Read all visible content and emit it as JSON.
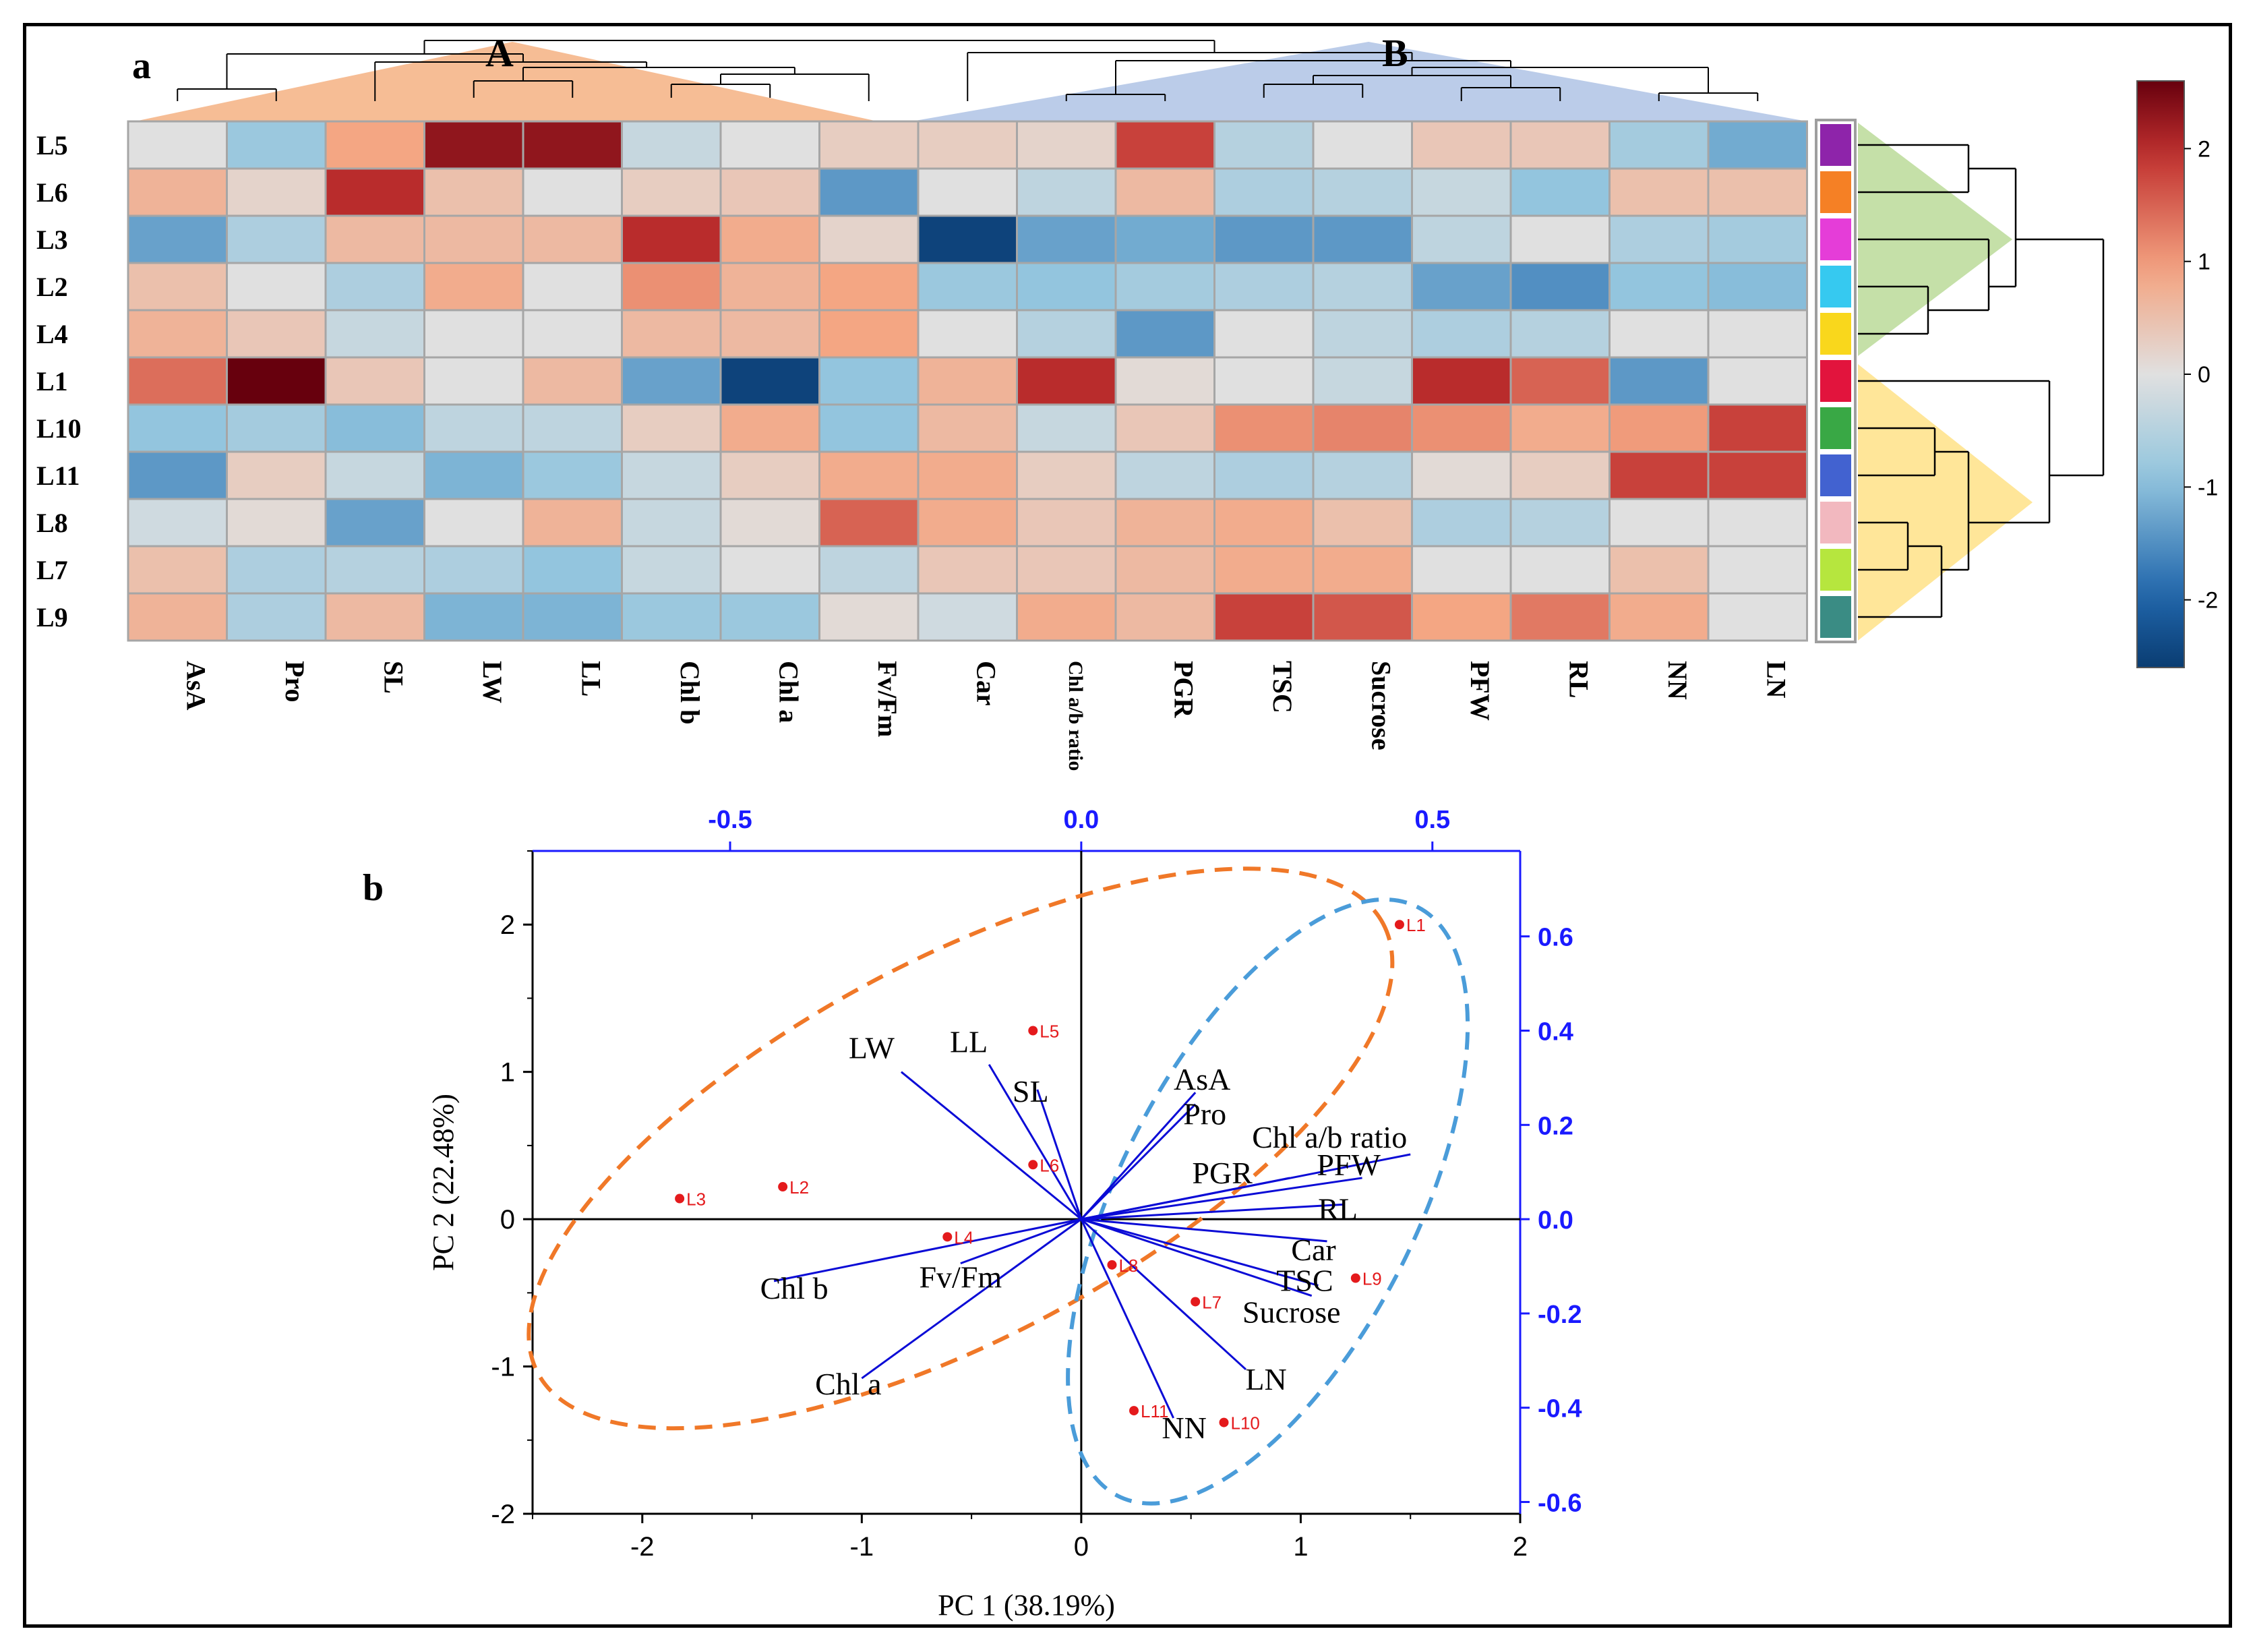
{
  "chart_data": [
    {
      "type": "heatmap",
      "panel_label": "a",
      "column_clusters": [
        "A",
        "B"
      ],
      "rows": [
        "L5",
        "L6",
        "L3",
        "L2",
        "L4",
        "L1",
        "L10",
        "L11",
        "L8",
        "L7",
        "L9"
      ],
      "columns": [
        "AsA",
        "Pro",
        "SL",
        "LW",
        "LL",
        "Chl b",
        "Chl a",
        "Fv/Fm",
        "Car",
        "Chl a/b ratio",
        "PGR",
        "TSC",
        "Sucrose",
        "PFW",
        "RL",
        "NN",
        "LN"
      ],
      "values": [
        [
          0.0,
          -0.8,
          0.9,
          2.3,
          2.3,
          -0.3,
          0.0,
          0.3,
          0.3,
          0.2,
          1.8,
          -0.5,
          0.0,
          0.4,
          0.4,
          -0.7,
          -1.2
        ],
        [
          0.7,
          0.2,
          2.0,
          0.5,
          0.0,
          0.3,
          0.4,
          -1.4,
          0.0,
          -0.4,
          0.6,
          -0.6,
          -0.5,
          -0.3,
          -0.9,
          0.5,
          0.5
        ],
        [
          -1.3,
          -0.6,
          0.6,
          0.6,
          0.6,
          2.0,
          0.8,
          0.2,
          -2.5,
          -1.3,
          -1.2,
          -1.4,
          -1.4,
          -0.4,
          0.0,
          -0.6,
          -0.7
        ],
        [
          0.5,
          0.0,
          -0.6,
          0.8,
          0.0,
          1.1,
          0.7,
          0.9,
          -0.8,
          -0.9,
          -0.7,
          -0.6,
          -0.5,
          -1.3,
          -1.5,
          -0.9,
          -1.0
        ],
        [
          0.7,
          0.4,
          -0.3,
          0.0,
          0.0,
          0.6,
          0.6,
          0.9,
          0.0,
          -0.5,
          -1.4,
          0.0,
          -0.4,
          -0.6,
          -0.5,
          0.0,
          0.0
        ],
        [
          1.4,
          2.6,
          0.4,
          0.0,
          0.6,
          -1.3,
          -2.5,
          -0.9,
          0.7,
          2.0,
          0.1,
          0.0,
          -0.3,
          2.0,
          1.5,
          -1.4,
          0.0
        ],
        [
          -0.9,
          -0.7,
          -1.0,
          -0.4,
          -0.4,
          0.3,
          0.8,
          -0.9,
          0.6,
          -0.3,
          0.4,
          1.1,
          1.2,
          1.1,
          0.8,
          1.0,
          1.8
        ],
        [
          -1.4,
          0.3,
          -0.3,
          -1.1,
          -0.8,
          -0.3,
          0.3,
          0.8,
          0.8,
          0.3,
          -0.4,
          -0.6,
          -0.5,
          0.1,
          0.3,
          1.8,
          1.8
        ],
        [
          -0.2,
          0.1,
          -1.3,
          0.0,
          0.7,
          -0.3,
          0.1,
          1.5,
          0.8,
          0.4,
          0.7,
          0.8,
          0.5,
          -0.6,
          -0.5,
          0.0,
          0.0
        ],
        [
          0.5,
          -0.6,
          -0.5,
          -0.6,
          -0.9,
          -0.3,
          0.0,
          -0.4,
          0.4,
          0.4,
          0.6,
          0.8,
          0.8,
          0.0,
          0.0,
          0.5,
          0.0
        ],
        [
          0.7,
          -0.6,
          0.6,
          -1.1,
          -1.1,
          -0.8,
          -0.8,
          0.1,
          -0.2,
          0.8,
          0.6,
          1.8,
          1.6,
          0.9,
          1.3,
          0.8,
          0.0
        ]
      ],
      "row_group_colors": [
        "#8e24aa",
        "#f58025",
        "#e53dd8",
        "#36c9f0",
        "#f9d71c",
        "#e2143d",
        "#39a845",
        "#4262d0",
        "#f2b8bf",
        "#b6e63e",
        "#3a8c84"
      ],
      "colorbar": {
        "ticks": [
          "2",
          "1",
          "0",
          "-1",
          "-2"
        ],
        "range": [
          -2.6,
          2.6
        ]
      },
      "palette": {
        "neg": "#0a3d72",
        "mid": "#e0e0e0",
        "pos": "#67000d"
      }
    },
    {
      "type": "scatter",
      "panel_label": "b",
      "xlabel": "PC 1 (38.19%)",
      "ylabel": "PC 2 (22.48%)",
      "xlim": [
        -2.5,
        2
      ],
      "ylim": [
        -2,
        2.5
      ],
      "x_ticks": [
        "-2",
        "-1",
        "0",
        "1",
        "2"
      ],
      "y_ticks": [
        "-2",
        "-1",
        "0",
        "1",
        "2"
      ],
      "top_axis_ticks": [
        "-0.5",
        "0.0",
        "0.5"
      ],
      "right_axis_ticks": [
        "0.6",
        "0.4",
        "0.2",
        "0.0",
        "-0.2",
        "-0.4",
        "-0.6"
      ],
      "points": [
        {
          "label": "L1",
          "x": 1.45,
          "y": 2.0
        },
        {
          "label": "L5",
          "x": -0.22,
          "y": 1.28
        },
        {
          "label": "L6",
          "x": -0.22,
          "y": 0.37
        },
        {
          "label": "L3",
          "x": -1.83,
          "y": 0.14
        },
        {
          "label": "L2",
          "x": -1.36,
          "y": 0.22
        },
        {
          "label": "L4",
          "x": -0.61,
          "y": -0.12
        },
        {
          "label": "L8",
          "x": 0.14,
          "y": -0.31
        },
        {
          "label": "L9",
          "x": 1.25,
          "y": -0.4
        },
        {
          "label": "L7",
          "x": 0.52,
          "y": -0.56
        },
        {
          "label": "L11",
          "x": 0.24,
          "y": -1.3
        },
        {
          "label": "L10",
          "x": 0.65,
          "y": -1.38
        }
      ],
      "loadings": [
        {
          "label": "LW",
          "x": -0.82,
          "y": 1.0
        },
        {
          "label": "LL",
          "x": -0.42,
          "y": 1.05
        },
        {
          "label": "SL",
          "x": -0.2,
          "y": 0.88
        },
        {
          "label": "AsA",
          "x": 0.52,
          "y": 0.86
        },
        {
          "label": "Pro",
          "x": 0.52,
          "y": 0.78
        },
        {
          "label": "Chl a/b ratio",
          "x": 1.5,
          "y": 0.44
        },
        {
          "label": "PGR",
          "x": 0.95,
          "y": 0.28
        },
        {
          "label": "PFW",
          "x": 1.28,
          "y": 0.28
        },
        {
          "label": "RL",
          "x": 1.2,
          "y": 0.1
        },
        {
          "label": "Car",
          "x": 1.12,
          "y": -0.15
        },
        {
          "label": "TSC",
          "x": 1.08,
          "y": -0.45
        },
        {
          "label": "Sucrose",
          "x": 1.05,
          "y": -0.52
        },
        {
          "label": "Chl b",
          "x": -1.4,
          "y": -0.42
        },
        {
          "label": "Fv/Fm",
          "x": -0.55,
          "y": -0.3
        },
        {
          "label": "Chl a",
          "x": -1.0,
          "y": -1.08
        },
        {
          "label": "LN",
          "x": 0.75,
          "y": -1.02
        },
        {
          "label": "NN",
          "x": 0.42,
          "y": -1.35
        }
      ],
      "ellipse_colors": {
        "orange": "#f07828",
        "blue": "#4a9cd9"
      }
    }
  ]
}
